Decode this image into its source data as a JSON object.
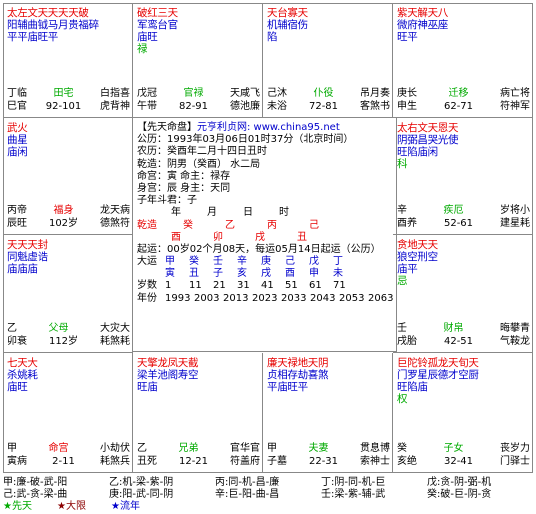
{
  "colors": {
    "red": "#e60000",
    "blue": "#0000cc",
    "green": "#00aa00"
  },
  "palaces": [
    {
      "id": "si",
      "lines": [
        {
          "t": "太左文天天天天破",
          "c": "red"
        },
        {
          "t": "阳辅曲钺马月贵福碎",
          "c": "blue"
        },
        {
          "t": "平平庙旺平",
          "c": "blue"
        }
      ],
      "r1": [
        "丁临",
        "田宅",
        "白指喜"
      ],
      "r2": [
        "巳官",
        "92-101",
        "虎背神"
      ]
    },
    {
      "id": "wu",
      "lines": [
        {
          "t": "破红三天",
          "c": "red"
        },
        {
          "t": "军鸾台官",
          "c": "blue"
        },
        {
          "t": "庙旺",
          "c": "blue"
        },
        {
          "t": "禄",
          "c": "green"
        }
      ],
      "r1": [
        "戊冠",
        "官禄",
        "天咸飞"
      ],
      "r2": [
        "午带",
        "82-91",
        "德池廉"
      ]
    },
    {
      "id": "wei",
      "lines": [
        {
          "t": "天台寡天",
          "c": "red"
        },
        {
          "t": "机辅宿伤",
          "c": "blue"
        },
        {
          "t": "陷",
          "c": "blue"
        }
      ],
      "r1": [
        "己沐",
        "仆役",
        "吊月奏"
      ],
      "r2": [
        "未浴",
        "72-81",
        "客煞书"
      ]
    },
    {
      "id": "shen",
      "lines": [
        {
          "t": "紫天解天八",
          "c": "red"
        },
        {
          "t": "微府神巫座",
          "c": "blue"
        },
        {
          "t": "旺平",
          "c": "blue"
        }
      ],
      "r1": [
        "庚长",
        "迁移",
        "病亡将"
      ],
      "r2": [
        "申生",
        "62-71",
        "符神军"
      ]
    },
    {
      "id": "chen",
      "lines": [
        {
          "t": "武火",
          "c": "red"
        },
        {
          "t": "曲星",
          "c": "blue"
        },
        {
          "t": "庙闲",
          "c": "blue"
        }
      ],
      "r1": [
        "丙帝",
        "福身",
        "龙天病"
      ],
      "r2": [
        "辰旺",
        "102岁",
        "德煞符"
      ]
    },
    {
      "id": "you",
      "lines": [
        {
          "t": "太右文天恩天",
          "c": "red"
        },
        {
          "t": "阴弼昌哭光使",
          "c": "blue"
        },
        {
          "t": "旺陷庙闲",
          "c": "blue"
        },
        {
          "t": "科",
          "c": "green"
        }
      ],
      "r1": [
        "辛",
        "疾厄",
        "岁将小"
      ],
      "r2": [
        "酉养",
        "52-61",
        "建星耗"
      ]
    },
    {
      "id": "mao",
      "lines": [
        {
          "t": "天天天封",
          "c": "red"
        },
        {
          "t": "同魁虚诰",
          "c": "blue"
        },
        {
          "t": "庙庙庙",
          "c": "blue"
        }
      ],
      "r1": [
        "乙",
        "父母",
        "大灾大"
      ],
      "r2": [
        "卯衰",
        "112岁",
        "耗煞耗"
      ]
    },
    {
      "id": "xu",
      "lines": [
        {
          "t": "贪地天天",
          "c": "red"
        },
        {
          "t": "狼空刑空",
          "c": "blue"
        },
        {
          "t": "庙平",
          "c": "blue"
        },
        {
          "t": "忌",
          "c": "green"
        }
      ],
      "r1": [
        "壬",
        "财帛",
        "晦攀青"
      ],
      "r2": [
        "戌胎",
        "42-51",
        "气鞍龙"
      ]
    },
    {
      "id": "yin",
      "lines": [
        {
          "t": "七天大",
          "c": "red"
        },
        {
          "t": "杀姚耗",
          "c": "blue"
        },
        {
          "t": "庙旺",
          "c": "blue"
        }
      ],
      "r1": [
        "甲",
        "命宫",
        "小劫伏"
      ],
      "r2": [
        "寅病",
        "2-11",
        "耗煞兵"
      ]
    },
    {
      "id": "chou",
      "lines": [
        {
          "t": "天擎龙凤天截",
          "c": "red"
        },
        {
          "t": "梁羊池阁寿空",
          "c": "blue"
        },
        {
          "t": "旺庙",
          "c": "blue"
        }
      ],
      "r1": [
        "乙",
        "兄弟",
        "官华官"
      ],
      "r2": [
        "丑死",
        "12-21",
        "符盖府"
      ]
    },
    {
      "id": "zi",
      "lines": [
        {
          "t": "廉天禄地天阴",
          "c": "red"
        },
        {
          "t": "贞相存劫喜煞",
          "c": "blue"
        },
        {
          "t": "平庙旺平",
          "c": "blue"
        }
      ],
      "r1": [
        "甲",
        "夫妻",
        "贯息博"
      ],
      "r2": [
        "子墓",
        "22-31",
        "索神士"
      ]
    },
    {
      "id": "hai",
      "lines": [
        {
          "t": "巨陀铃孤龙天旬天",
          "c": "red"
        },
        {
          "t": "门罗星辰德才空厨",
          "c": "blue"
        },
        {
          "t": "旺陷庙",
          "c": "blue"
        },
        {
          "t": "权",
          "c": "green"
        }
      ],
      "r1": [
        "癸",
        "子女",
        "丧岁力"
      ],
      "r2": [
        "亥绝",
        "32-41",
        "门驿士"
      ]
    }
  ],
  "center": {
    "title": "【先天命盘】",
    "site": "元亨利贞网: www.china95.net",
    "solar": "公历：1993年03月06日01时37分（北京时间）",
    "lunar": "农历：癸酉年二月十四日丑时",
    "sex": "乾造：阴男（癸酉） 水二局",
    "ming": "命宫：寅       命主：禄存",
    "shen": "身宫：辰       身主：天同",
    "zidou": "子年斗君：子",
    "pillar_head": [
      "年",
      "月",
      "日",
      "时"
    ],
    "qianzao": "乾造",
    "stems": [
      "癸",
      "乙",
      "丙",
      "己"
    ],
    "branches": [
      "酉",
      "卯",
      "戌",
      "丑"
    ],
    "qiyun": "起运：00岁02个月08天，每运05月14日起运（公历）",
    "dayun_label": "大运",
    "dy_stems": [
      "甲",
      "癸",
      "壬",
      "辛",
      "庚",
      "己",
      "戊",
      "丁"
    ],
    "dy_branches": [
      "寅",
      "丑",
      "子",
      "亥",
      "戌",
      "酉",
      "申",
      "未"
    ],
    "age_label": "岁数",
    "ages": [
      "1",
      "11",
      "21",
      "31",
      "41",
      "51",
      "61",
      "71"
    ],
    "year_label": "年份",
    "years": [
      "1993",
      "2003",
      "2013",
      "2023",
      "2033",
      "2043",
      "2053",
      "2063"
    ]
  },
  "footer": {
    "row1": [
      "甲:廉-破-武-阳",
      "乙:机-梁-紫-阴",
      "丙:同-机-昌-廉",
      "丁:阴-同-机-巨",
      "戊:贪-阴-弼-机"
    ],
    "row2": [
      "己:武-贪-梁-曲",
      "庚:阳-武-同-阴",
      "辛:巨-阳-曲-昌",
      "壬:梁-紫-辅-武",
      "癸:破-巨-阴-贪"
    ],
    "legend": [
      "★先天",
      "★大限",
      "★流年"
    ]
  }
}
